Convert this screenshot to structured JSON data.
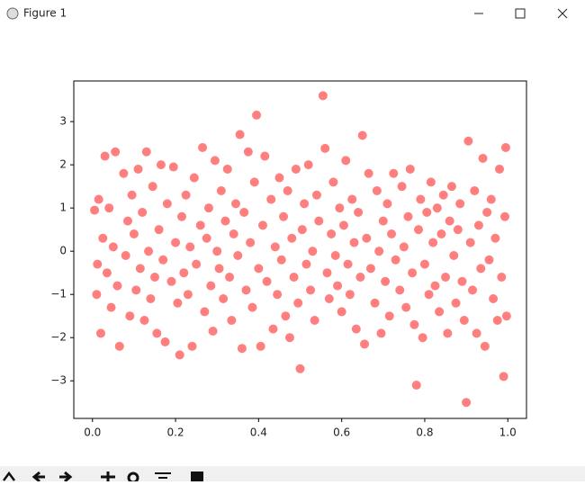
{
  "window_title": "Figure 1",
  "chart_data": {
    "type": "scatter",
    "color": "#ff0000",
    "alpha": 0.5,
    "xlim": [
      -0.045,
      1.045
    ],
    "ylim": [
      -3.87,
      3.94
    ],
    "xticks": [
      {
        "value": 0,
        "label": "0.0"
      },
      {
        "value": 0.2,
        "label": "0.2"
      },
      {
        "value": 0.4,
        "label": "0.4"
      },
      {
        "value": 0.6,
        "label": "0.6"
      },
      {
        "value": 0.8,
        "label": "0.8"
      },
      {
        "value": 1,
        "label": "1.0"
      }
    ],
    "yticks": [
      {
        "value": -3,
        "label": "−3"
      },
      {
        "value": -2,
        "label": "−2"
      },
      {
        "value": -1,
        "label": "−1"
      },
      0,
      1,
      2,
      3
    ],
    "x": [
      0.005,
      0.01,
      0.012,
      0.015,
      0.02,
      0.025,
      0.03,
      0.035,
      0.04,
      0.045,
      0.05,
      0.055,
      0.06,
      0.065,
      0.075,
      0.08,
      0.085,
      0.09,
      0.095,
      0.1,
      0.105,
      0.11,
      0.115,
      0.12,
      0.125,
      0.13,
      0.135,
      0.14,
      0.145,
      0.15,
      0.155,
      0.16,
      0.165,
      0.17,
      0.175,
      0.18,
      0.19,
      0.195,
      0.2,
      0.205,
      0.21,
      0.215,
      0.22,
      0.225,
      0.23,
      0.235,
      0.24,
      0.245,
      0.25,
      0.26,
      0.265,
      0.27,
      0.275,
      0.28,
      0.285,
      0.29,
      0.295,
      0.3,
      0.305,
      0.31,
      0.315,
      0.32,
      0.325,
      0.33,
      0.335,
      0.34,
      0.345,
      0.35,
      0.355,
      0.36,
      0.365,
      0.37,
      0.375,
      0.38,
      0.385,
      0.39,
      0.395,
      0.4,
      0.405,
      0.41,
      0.415,
      0.42,
      0.43,
      0.435,
      0.44,
      0.445,
      0.45,
      0.455,
      0.46,
      0.465,
      0.47,
      0.475,
      0.48,
      0.485,
      0.49,
      0.495,
      0.5,
      0.505,
      0.51,
      0.515,
      0.52,
      0.525,
      0.53,
      0.535,
      0.54,
      0.545,
      0.555,
      0.56,
      0.565,
      0.57,
      0.575,
      0.58,
      0.585,
      0.59,
      0.595,
      0.6,
      0.605,
      0.61,
      0.615,
      0.62,
      0.625,
      0.63,
      0.635,
      0.64,
      0.645,
      0.65,
      0.655,
      0.66,
      0.665,
      0.67,
      0.68,
      0.685,
      0.69,
      0.695,
      0.7,
      0.705,
      0.71,
      0.715,
      0.72,
      0.725,
      0.73,
      0.74,
      0.745,
      0.75,
      0.755,
      0.76,
      0.765,
      0.77,
      0.775,
      0.78,
      0.785,
      0.79,
      0.795,
      0.8,
      0.805,
      0.81,
      0.815,
      0.82,
      0.825,
      0.83,
      0.835,
      0.84,
      0.845,
      0.85,
      0.855,
      0.86,
      0.865,
      0.87,
      0.875,
      0.88,
      0.885,
      0.89,
      0.895,
      0.9,
      0.905,
      0.91,
      0.915,
      0.92,
      0.925,
      0.93,
      0.935,
      0.94,
      0.945,
      0.95,
      0.955,
      0.96,
      0.965,
      0.97,
      0.975,
      0.98,
      0.985,
      0.99,
      0.993,
      0.995,
      0.997
    ],
    "y": [
      0.95,
      -1.0,
      -0.3,
      1.2,
      -1.9,
      0.3,
      2.2,
      -0.5,
      1.0,
      -1.3,
      0.1,
      2.3,
      -0.8,
      -2.2,
      1.8,
      -0.1,
      0.7,
      -1.5,
      1.3,
      0.4,
      -0.9,
      1.9,
      -0.4,
      0.9,
      -1.6,
      2.3,
      0.0,
      -1.1,
      1.5,
      -0.6,
      -1.9,
      0.5,
      2.0,
      -0.2,
      -2.1,
      1.1,
      -0.7,
      1.95,
      0.2,
      -1.2,
      -2.4,
      0.8,
      -0.5,
      1.3,
      -1.0,
      0.1,
      -2.2,
      1.7,
      -0.3,
      0.6,
      2.4,
      -1.4,
      0.3,
      1.0,
      -0.8,
      -1.85,
      2.1,
      0.0,
      -0.4,
      1.4,
      -1.1,
      0.7,
      1.9,
      -0.6,
      -1.6,
      0.4,
      1.1,
      -0.1,
      2.7,
      -2.25,
      0.9,
      -0.9,
      2.3,
      0.2,
      -1.3,
      1.6,
      3.15,
      -0.4,
      -2.2,
      0.6,
      2.2,
      -0.7,
      1.2,
      -1.8,
      0.1,
      -1.0,
      1.7,
      -0.2,
      0.8,
      -1.5,
      1.4,
      -2.0,
      0.3,
      -0.6,
      1.9,
      -1.2,
      -2.72,
      0.5,
      1.1,
      -0.3,
      2.0,
      -0.9,
      0.0,
      -1.6,
      1.3,
      0.7,
      3.6,
      2.38,
      -0.5,
      -1.1,
      0.4,
      1.6,
      -0.1,
      -0.8,
      1.0,
      -1.4,
      0.6,
      2.1,
      -0.3,
      -1.0,
      1.2,
      0.2,
      -1.8,
      0.9,
      -0.6,
      2.68,
      -2.15,
      0.3,
      1.8,
      -0.4,
      -1.2,
      1.4,
      0.0,
      -1.9,
      0.7,
      -0.7,
      1.1,
      -1.5,
      0.4,
      1.8,
      -0.2,
      -0.9,
      1.5,
      0.1,
      -1.3,
      0.8,
      1.9,
      -0.5,
      -1.7,
      -3.1,
      0.5,
      1.2,
      -2.0,
      -0.3,
      0.9,
      -1.0,
      1.6,
      0.2,
      -0.8,
      1.0,
      -1.4,
      0.4,
      1.3,
      -0.6,
      -1.9,
      0.7,
      1.5,
      -0.1,
      -1.2,
      0.5,
      1.1,
      -0.7,
      -1.6,
      -3.5,
      2.55,
      0.2,
      -0.9,
      1.4,
      -1.9,
      0.6,
      -0.4,
      2.15,
      -2.2,
      0.9,
      -0.2,
      1.2,
      -1.1,
      0.3,
      -1.6,
      1.9,
      -0.6,
      -2.9,
      0.8,
      2.4,
      -1.5
    ]
  }
}
